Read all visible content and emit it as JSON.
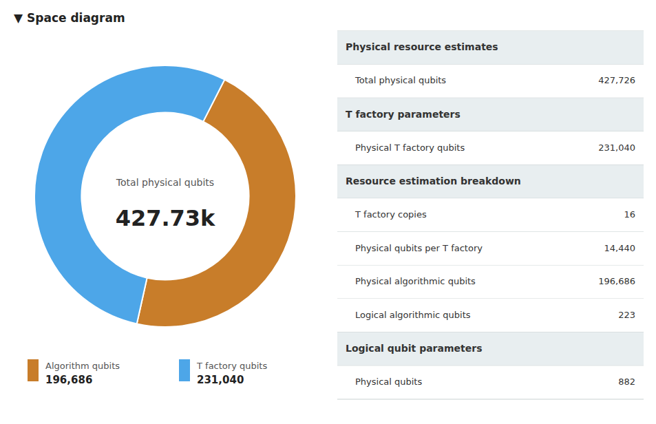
{
  "chart_data": [
    {
      "type": "pie",
      "title": "▼ Space diagram",
      "categories": [
        "Algorithm qubits",
        "T factory qubits"
      ],
      "values": [
        196686,
        231040
      ],
      "value_labels": [
        "196,686",
        "231,040"
      ],
      "colors": [
        "#c87d2a",
        "#4da6e8"
      ],
      "annotations": [
        "Total physical qubits",
        "427.73k"
      ],
      "legend": "bottom"
    },
    {
      "type": "table",
      "sections": [
        {
          "header": "Physical resource estimates",
          "rows": [
            {
              "label": "Total physical qubits",
              "value": "427,726"
            }
          ]
        },
        {
          "header": "T factory parameters",
          "rows": [
            {
              "label": "Physical T factory qubits",
              "value": "231,040"
            }
          ]
        },
        {
          "header": "Resource estimation breakdown",
          "rows": [
            {
              "label": "T factory copies",
              "value": "16"
            },
            {
              "label": "Physical qubits per T factory",
              "value": "14,440"
            },
            {
              "label": "Physical algorithmic qubits",
              "value": "196,686"
            },
            {
              "label": "Logical algorithmic qubits",
              "value": "223"
            }
          ]
        },
        {
          "header": "Logical qubit parameters",
          "rows": [
            {
              "label": "Physical qubits",
              "value": "882"
            }
          ]
        }
      ]
    }
  ]
}
